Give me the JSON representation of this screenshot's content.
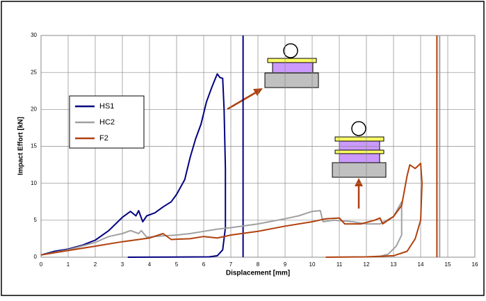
{
  "chart_data": {
    "type": "line",
    "xlabel": "Displacement [mm]",
    "ylabel": "Impact Effort [kN]",
    "xlim": [
      0,
      16
    ],
    "ylim": [
      0,
      30
    ],
    "xticks": [
      0,
      1,
      2,
      3,
      4,
      5,
      6,
      7,
      8,
      9,
      10,
      11,
      12,
      13,
      14,
      15,
      16
    ],
    "yticks": [
      0,
      5,
      10,
      15,
      20,
      25,
      30
    ],
    "grid": true,
    "legend": "left",
    "series": [
      {
        "name": "HS1",
        "color": "#000080",
        "x": [
          0,
          0.5,
          1,
          1.5,
          2,
          2.5,
          3,
          3.3,
          3.5,
          3.6,
          3.75,
          3.9,
          4.2,
          4.5,
          4.8,
          5,
          5.3,
          5.5,
          5.7,
          5.9,
          6.1,
          6.3,
          6.5,
          6.6,
          6.7,
          6.75,
          6.8,
          6.8,
          6.7,
          6.5,
          6.2,
          3.2,
          null,
          7.45,
          7.45
        ],
        "values": [
          0.3,
          0.8,
          1.1,
          1.6,
          2.3,
          3.6,
          5.4,
          6.2,
          5.6,
          6.3,
          4.8,
          5.6,
          6,
          6.8,
          7.5,
          8.5,
          10.5,
          13.5,
          16,
          18,
          21,
          23,
          24.8,
          24.3,
          24.2,
          20,
          12,
          4,
          1,
          0.2,
          0.05,
          0,
          null,
          0,
          30
        ]
      },
      {
        "name": "HC2",
        "color": "#a0a0a0",
        "x": [
          0,
          1,
          2,
          2.5,
          3,
          3.3,
          3.6,
          3.7,
          3.9,
          4.5,
          5,
          5.5,
          6,
          6.5,
          7,
          8,
          9,
          9.5,
          10,
          10.3,
          10.4,
          10.8,
          11.5,
          12,
          12.5,
          13,
          13.3,
          13.3,
          13.1,
          12.8,
          12.5,
          null,
          14.7,
          14.7
        ],
        "values": [
          0.3,
          1,
          2,
          2.8,
          3.2,
          3.6,
          3.2,
          3.6,
          2.7,
          2.9,
          3,
          3.2,
          3.5,
          3.8,
          4,
          4.5,
          5.2,
          5.6,
          6.2,
          6.3,
          4.8,
          5,
          4.8,
          4.5,
          4.5,
          5.5,
          7.5,
          3,
          1.5,
          0.4,
          0.1,
          null,
          0,
          30
        ]
      },
      {
        "name": "F2",
        "color": "#b0400c",
        "x": [
          0,
          1,
          2,
          3,
          4,
          4.5,
          4.8,
          5.5,
          6,
          6.5,
          7,
          8,
          9,
          10,
          10.5,
          11,
          11.2,
          11.8,
          12.3,
          12.5,
          12.6,
          13,
          13.3,
          13.5,
          13.6,
          13.8,
          14,
          14.05,
          14,
          13.8,
          13.5,
          13,
          12,
          10.5,
          null,
          14.6,
          14.6
        ],
        "values": [
          0.3,
          0.9,
          1.5,
          2.1,
          2.6,
          3.2,
          2.4,
          2.5,
          2.8,
          2.6,
          3,
          3.5,
          4.2,
          4.8,
          5.2,
          5.3,
          4.5,
          4.5,
          5,
          5.3,
          4.5,
          5.5,
          7,
          11,
          12.5,
          12,
          12.7,
          10,
          5,
          2.5,
          0.8,
          0.2,
          0.05,
          0,
          null,
          0,
          30
        ]
      }
    ]
  }
}
